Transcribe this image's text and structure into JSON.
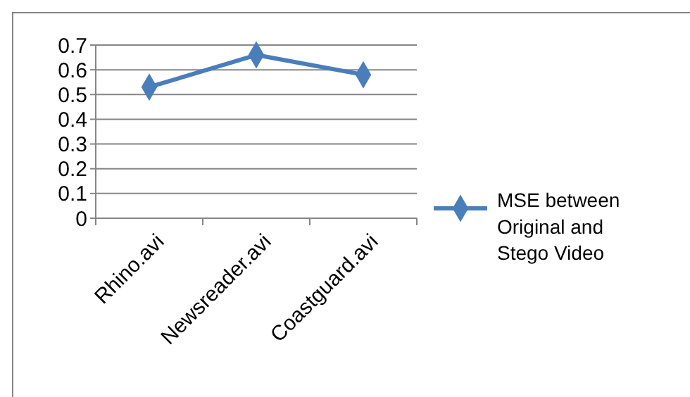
{
  "chart_data": {
    "type": "line",
    "categories": [
      "Rhino.avi",
      "Newsreader.avi",
      "Coastguard.avi"
    ],
    "series": [
      {
        "name": "MSE between Original and Stego Video",
        "color": "#4a7ebb",
        "values": [
          0.53,
          0.66,
          0.58
        ]
      }
    ],
    "ylim": [
      0,
      0.7
    ],
    "yticks": [
      0,
      0.1,
      0.2,
      0.3,
      0.4,
      0.5,
      0.6,
      0.7
    ],
    "grid": "y",
    "legend": "right",
    "marker": "diamond"
  }
}
